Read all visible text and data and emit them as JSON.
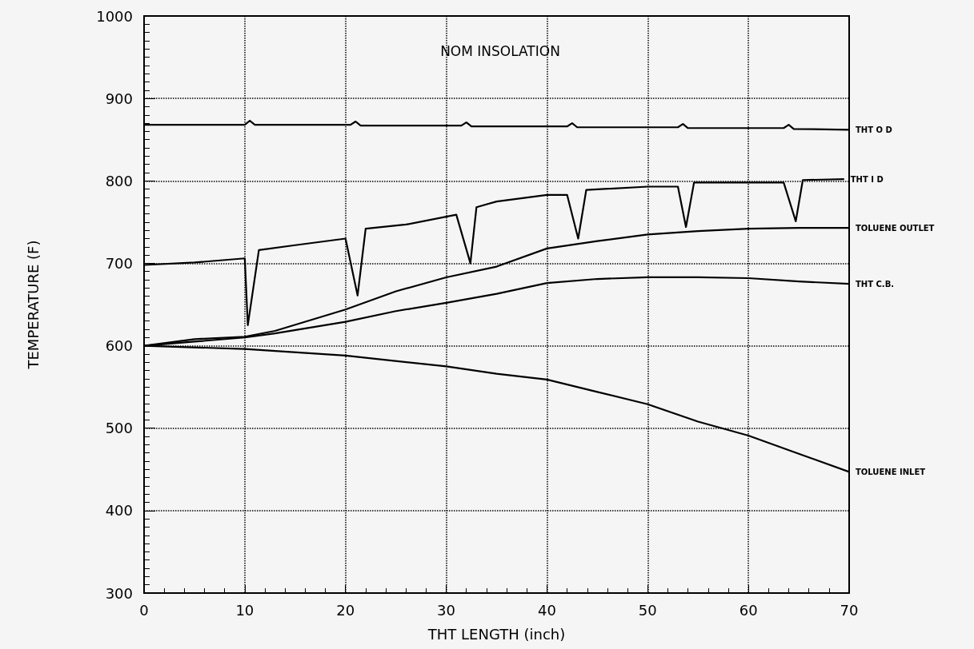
{
  "chart_data": {
    "type": "line",
    "title": "NOM INSOLATION",
    "xlabel": "THT LENGTH (inch)",
    "ylabel": "TEMPERATURE (F)",
    "xlim": [
      0,
      70
    ],
    "xticks": [
      0,
      10,
      20,
      30,
      40,
      50,
      60,
      70
    ],
    "ylim": [
      300,
      1000
    ],
    "yticks": [
      300,
      400,
      500,
      600,
      700,
      800,
      900,
      1000
    ],
    "grid": true,
    "legend": false,
    "marker": "none",
    "line_style": "solid",
    "series": [
      {
        "name": "THT O D",
        "color": "#000000",
        "x": [
          0,
          10,
          10.5,
          11,
          20.5,
          21,
          21.5,
          31.5,
          32,
          32.5,
          42,
          42.5,
          43,
          53,
          53.5,
          54,
          63.5,
          64,
          64.5,
          70
        ],
        "values": [
          868,
          868,
          873,
          868,
          868,
          872,
          867,
          867,
          871,
          866,
          866,
          870,
          865,
          865,
          869,
          864,
          864,
          868,
          863,
          862
        ]
      },
      {
        "name": "THT I D",
        "color": "#000000",
        "x": [
          0,
          5,
          10,
          10.3,
          11.4,
          15,
          20,
          21.2,
          22,
          26,
          31,
          32.4,
          33,
          35,
          40,
          42,
          43.1,
          43.9,
          50,
          53,
          53.8,
          54.6,
          60,
          63.5,
          64.7,
          65.4,
          69.5
        ],
        "values": [
          698,
          701,
          706,
          625,
          716,
          722,
          730,
          661,
          742,
          747,
          759,
          700,
          768,
          775,
          783,
          783,
          730,
          789,
          793,
          793,
          744,
          798,
          798,
          798,
          751,
          801,
          802
        ]
      },
      {
        "name": "TOLUENE OUTLET",
        "color": "#000000",
        "x": [
          0,
          5,
          10,
          13,
          20,
          25,
          30,
          35,
          40,
          45,
          50,
          55,
          60,
          65,
          70
        ],
        "values": [
          600,
          608,
          611,
          618,
          644,
          666,
          683,
          696,
          718,
          727,
          735,
          739,
          742,
          743,
          743
        ]
      },
      {
        "name": "THT C.B.",
        "color": "#000000",
        "x": [
          0,
          5,
          10,
          13,
          20,
          25,
          30,
          35,
          40,
          45,
          50,
          55,
          60,
          65,
          70
        ],
        "values": [
          600,
          605,
          610,
          615,
          629,
          642,
          652,
          663,
          676,
          681,
          683,
          683,
          682,
          678,
          675
        ]
      },
      {
        "name": "TOLUENE INLET",
        "color": "#000000",
        "x": [
          0,
          10,
          20,
          30,
          35,
          40,
          45,
          50,
          55,
          60,
          65,
          70
        ],
        "values": [
          600,
          596,
          588,
          575,
          566,
          559,
          544,
          529,
          508,
          491,
          469,
          447
        ]
      }
    ]
  }
}
